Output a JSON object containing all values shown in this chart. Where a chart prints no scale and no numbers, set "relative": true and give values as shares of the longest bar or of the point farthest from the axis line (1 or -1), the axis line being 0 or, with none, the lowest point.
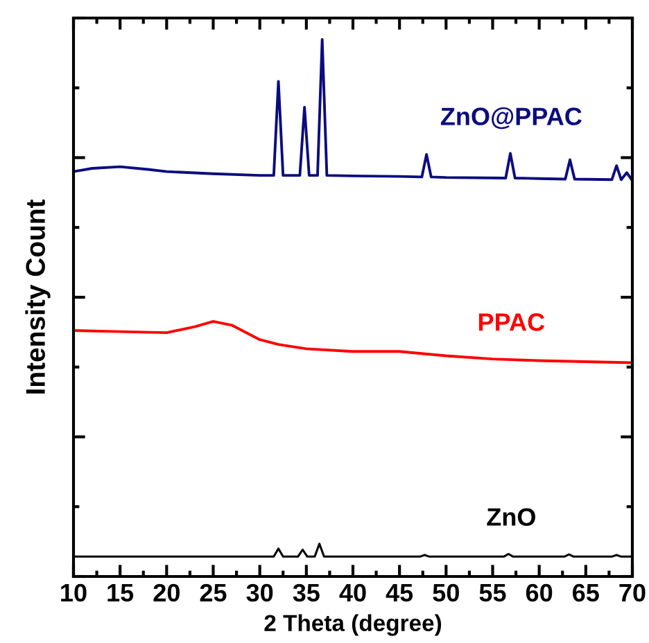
{
  "chart_data": {
    "type": "line",
    "xlabel": "2 Theta (degree)",
    "ylabel": "Intensity Count",
    "relative": true,
    "xlim": [
      10,
      70
    ],
    "xticks": [
      10,
      15,
      20,
      25,
      30,
      35,
      40,
      45,
      50,
      55,
      60,
      65,
      70
    ],
    "grid": false,
    "legend": false,
    "marker": "none",
    "line_style": "solid",
    "series": [
      {
        "name": "ZnO@PPAC",
        "color": "#0c0c80",
        "x": [
          10,
          12,
          15,
          18,
          20,
          25,
          30,
          31.5,
          32.0,
          32.5,
          34.3,
          34.8,
          35.3,
          36.2,
          36.7,
          37.2,
          40,
          45,
          47.4,
          47.9,
          48.4,
          50,
          56.4,
          56.9,
          57.4,
          60,
          62.8,
          63.3,
          63.8,
          67.8,
          68.3,
          68.8,
          69.4,
          70
        ],
        "values": [
          0.754,
          0.76,
          0.763,
          0.758,
          0.754,
          0.75,
          0.747,
          0.747,
          0.922,
          0.747,
          0.747,
          0.874,
          0.747,
          0.747,
          1.0,
          0.747,
          0.746,
          0.745,
          0.744,
          0.786,
          0.744,
          0.743,
          0.742,
          0.788,
          0.742,
          0.741,
          0.74,
          0.776,
          0.74,
          0.739,
          0.765,
          0.739,
          0.752,
          0.737
        ]
      },
      {
        "name": "PPAC",
        "color": "#ff0000",
        "x": [
          10,
          15,
          20,
          23,
          25,
          27,
          30,
          32,
          35,
          40,
          45,
          50,
          55,
          60,
          65,
          70
        ],
        "values": [
          0.458,
          0.456,
          0.454,
          0.465,
          0.475,
          0.468,
          0.441,
          0.432,
          0.424,
          0.419,
          0.419,
          0.411,
          0.405,
          0.402,
          0.4,
          0.398
        ]
      },
      {
        "name": "ZnO",
        "color": "#000000",
        "x": [
          10,
          31.5,
          32.0,
          32.5,
          34.1,
          34.6,
          35.1,
          35.9,
          36.4,
          36.9,
          47.2,
          47.7,
          48.2,
          56.2,
          56.7,
          57.2,
          62.7,
          63.2,
          63.7,
          67.8,
          68.3,
          68.8,
          70
        ],
        "values": [
          0.037,
          0.037,
          0.052,
          0.037,
          0.037,
          0.05,
          0.037,
          0.037,
          0.061,
          0.037,
          0.037,
          0.04,
          0.037,
          0.037,
          0.042,
          0.037,
          0.037,
          0.041,
          0.037,
          0.037,
          0.04,
          0.037,
          0.037
        ]
      }
    ]
  }
}
